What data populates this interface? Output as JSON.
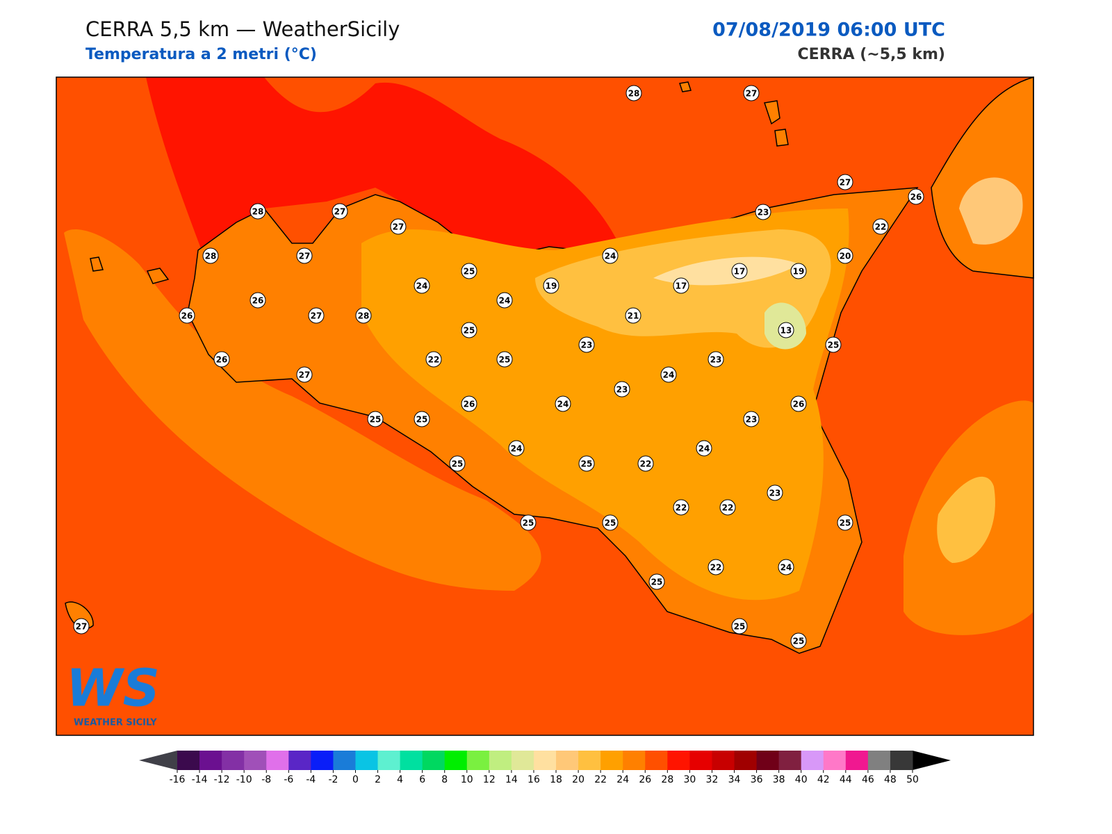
{
  "header": {
    "title": "CERRA 5,5 km — WeatherSicily",
    "subtitle": "Temperatura a 2 metri (°C)",
    "datetime": "07/08/2019 06:00 UTC",
    "model": "CERRA (~5,5 km)"
  },
  "logo": {
    "mark": "WS",
    "text": "WEATHER SICILY"
  },
  "stations": [
    28,
    27,
    27,
    26,
    22,
    28,
    27,
    27,
    23,
    28,
    27,
    24,
    20,
    25,
    17,
    19,
    24,
    19,
    17,
    26,
    24,
    26,
    27,
    28,
    21,
    13,
    25,
    23,
    25,
    26,
    22,
    25,
    23,
    27,
    24,
    23,
    26,
    24,
    26,
    25,
    25,
    23,
    24,
    24,
    25,
    25,
    22,
    23,
    22,
    22,
    25,
    25,
    25,
    22,
    24,
    25,
    27,
    25,
    25
  ],
  "colorbar": {
    "ticks": [
      -16,
      -14,
      -12,
      -10,
      -8,
      -6,
      -4,
      -2,
      0,
      2,
      4,
      6,
      8,
      10,
      12,
      14,
      16,
      18,
      20,
      22,
      24,
      26,
      28,
      30,
      32,
      34,
      36,
      38,
      40,
      42,
      44,
      46,
      48,
      50
    ],
    "colors": [
      "#3b0a4d",
      "#6b1090",
      "#8330a5",
      "#a050b8",
      "#e070ea",
      "#5a26c6",
      "#0a1ef8",
      "#1a7cd8",
      "#0ac4e4",
      "#5ef0d0",
      "#00e0a0",
      "#00d860",
      "#00ee00",
      "#7af040",
      "#c0ee80",
      "#e0e898",
      "#ffe0a0",
      "#ffc878",
      "#ffc040",
      "#ffa000",
      "#ff8000",
      "#ff5000",
      "#ff1400",
      "#e60000",
      "#c80000",
      "#a00000",
      "#700018",
      "#802040",
      "#d898f8",
      "#ff78c8",
      "#f01890",
      "#808080",
      "#383838"
    ],
    "under_color": "#404048",
    "over_color": "#000000"
  }
}
